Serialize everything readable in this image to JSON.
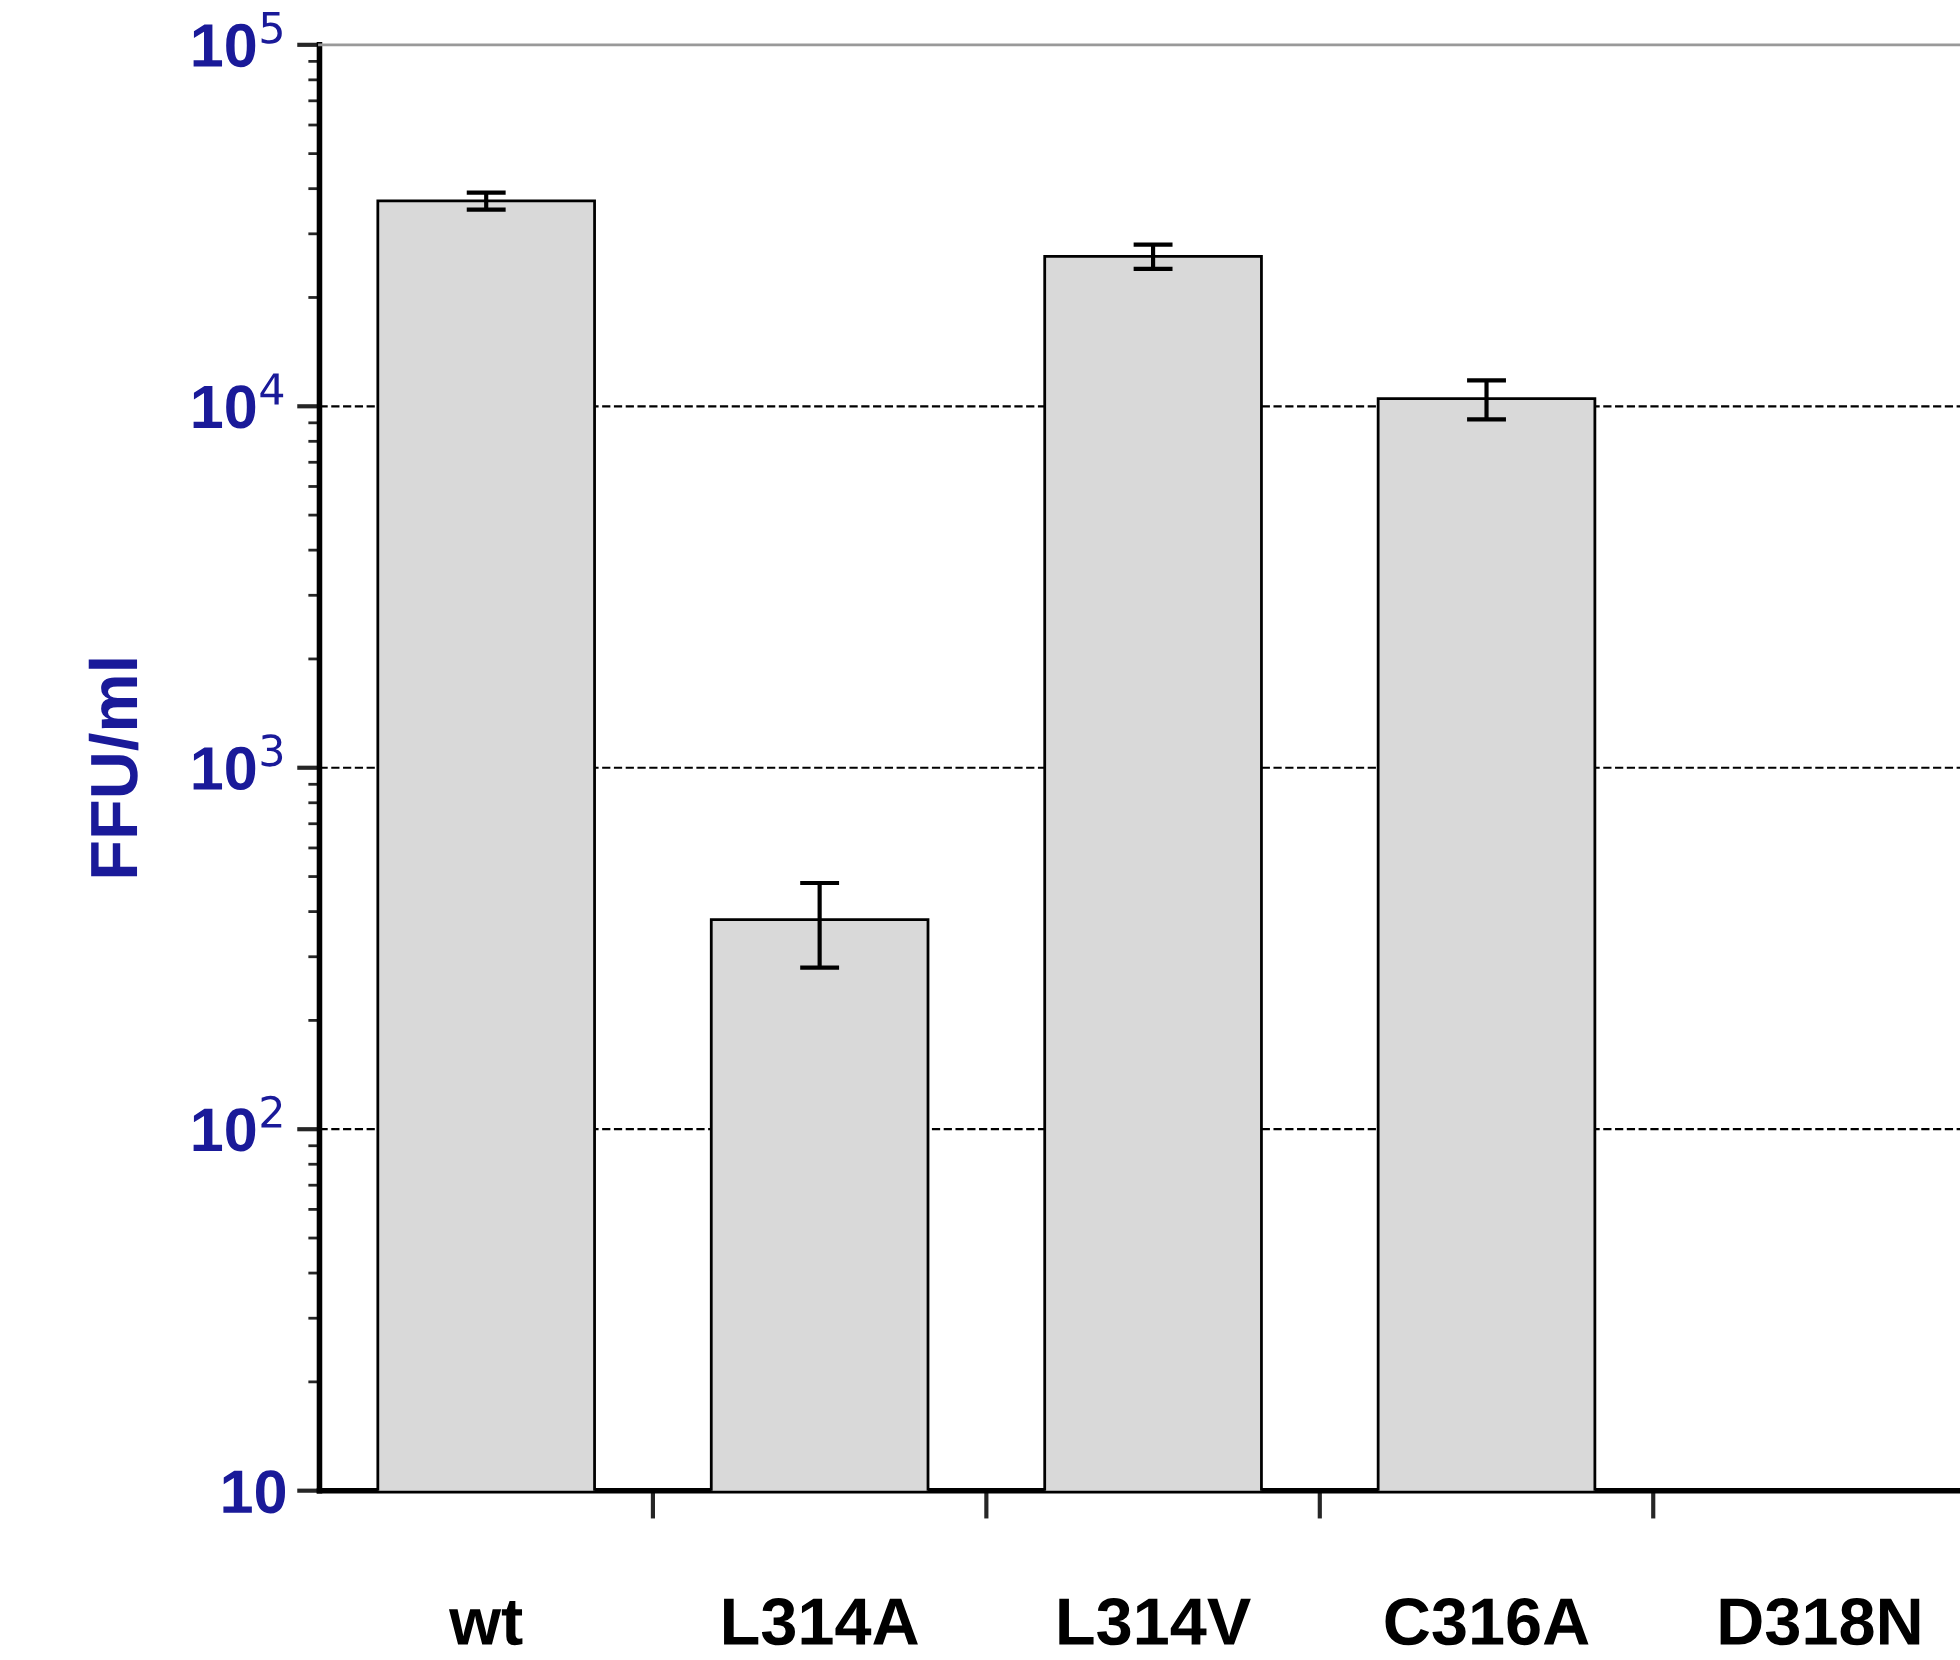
{
  "chart_data": {
    "type": "bar",
    "ylabel": "FFU/ml",
    "log": true,
    "categories": [
      "wt",
      "L314A",
      "L314V",
      "C316A",
      "D318N"
    ],
    "values": [
      37000,
      380,
      26000,
      10500,
      null
    ],
    "errors": [
      2000,
      100,
      2000,
      1300,
      null
    ],
    "color": "#d9d9d9",
    "ylim": [
      10,
      100000
    ],
    "yticks": [
      10,
      {
        "value": 100,
        "label": "10$^{2}$"
      },
      {
        "value": 1000,
        "label": "10$^{3}$"
      },
      {
        "value": 10000,
        "label": "10$^{4}$"
      },
      {
        "value": 100000,
        "label": "10$^{5}$"
      }
    ],
    "grid": "y"
  }
}
